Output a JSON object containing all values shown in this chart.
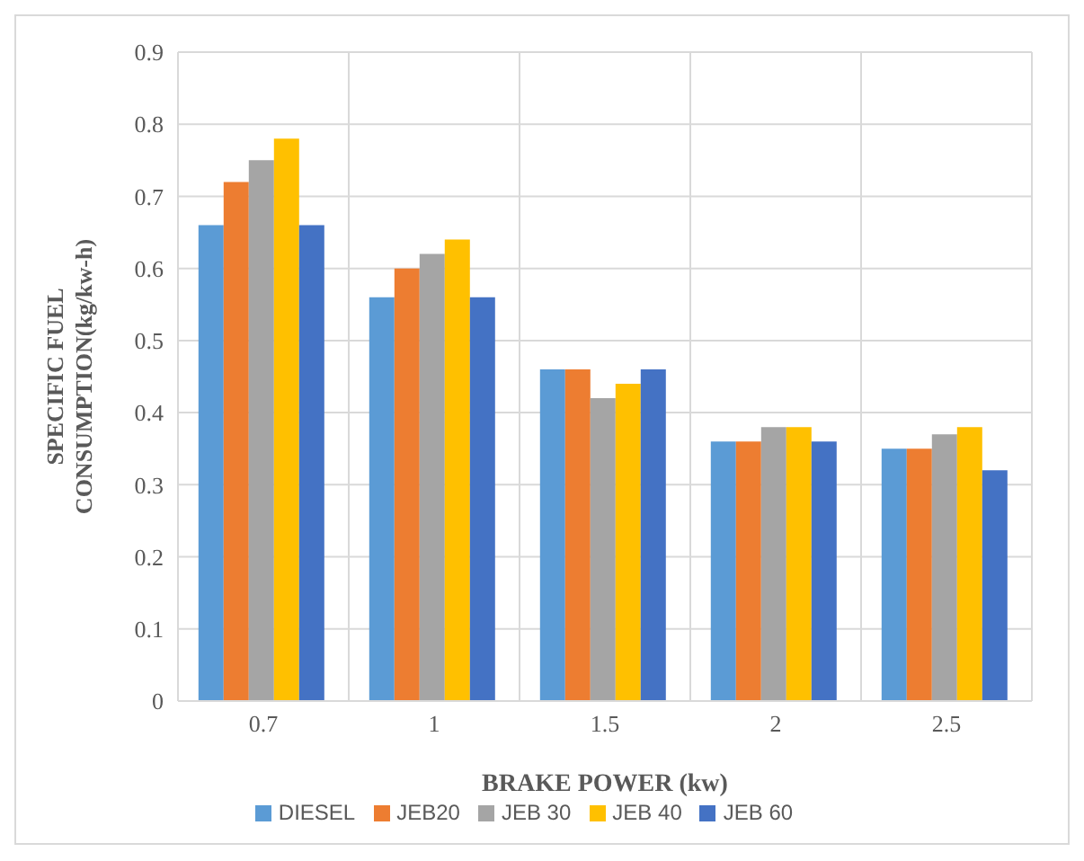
{
  "chart_data": {
    "type": "bar",
    "xlabel": "BRAKE POWER (kw)",
    "ylabel": "SPECIFIC FUEL CONSUMPTION(kg/kw-h)",
    "categories": [
      "0.7",
      "1",
      "1.5",
      "2",
      "2.5"
    ],
    "series": [
      {
        "name": "DIESEL",
        "color": "#5b9bd5",
        "values": [
          0.66,
          0.56,
          0.46,
          0.36,
          0.35
        ]
      },
      {
        "name": "JEB20",
        "color": "#ed7d31",
        "values": [
          0.72,
          0.6,
          0.46,
          0.36,
          0.35
        ]
      },
      {
        "name": "JEB 30",
        "color": "#a5a5a5",
        "values": [
          0.75,
          0.62,
          0.42,
          0.38,
          0.37
        ]
      },
      {
        "name": "JEB 40",
        "color": "#ffc000",
        "values": [
          0.78,
          0.64,
          0.44,
          0.38,
          0.38
        ]
      },
      {
        "name": "JEB 60",
        "color": "#4472c4",
        "values": [
          0.66,
          0.56,
          0.46,
          0.36,
          0.32
        ]
      }
    ],
    "ylim": [
      0,
      0.9
    ],
    "yticks": [
      0,
      0.1,
      0.2,
      0.3,
      0.4,
      0.5,
      0.6,
      0.7,
      0.8,
      0.9
    ],
    "grid": true,
    "legend": "bottom"
  }
}
